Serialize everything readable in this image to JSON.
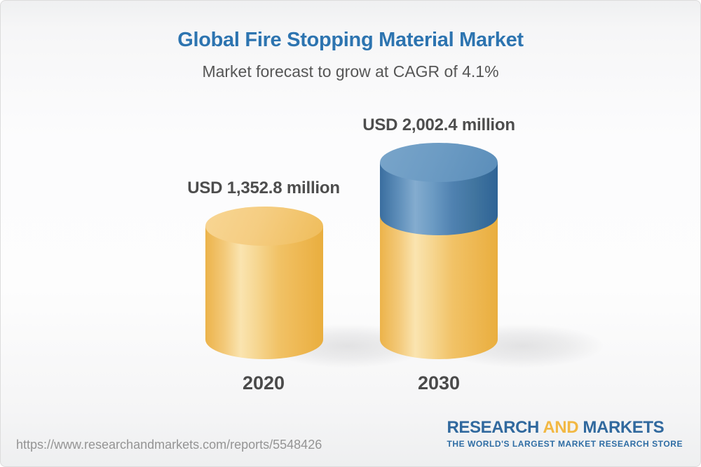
{
  "header": {
    "title": "Global Fire Stopping Material Market",
    "subtitle": "Market forecast to grow at CAGR of 4.1%"
  },
  "chart_data": {
    "type": "bar",
    "subtype": "3d-stacked-cylinder-infographic",
    "title": "Global Fire Stopping Material Market",
    "subtitle": "Market forecast to grow at CAGR of 4.1%",
    "unit": "USD million",
    "cagr_percent": 4.1,
    "categories": [
      "2020",
      "2030"
    ],
    "values": [
      1352.8,
      2002.4
    ],
    "value_labels": [
      "USD 1,352.8 million",
      "USD 2,002.4 million"
    ],
    "series": [
      {
        "name": "2020 base value",
        "values": [
          1352.8,
          1352.8
        ],
        "color": "#f0bd5b"
      },
      {
        "name": "Forecast growth by 2030",
        "values": [
          0,
          649.6
        ],
        "color": "#4a7fae"
      }
    ],
    "legend": "none",
    "grid": false,
    "axes": "none",
    "colors": {
      "bar_yellow": "#f0bd5b",
      "bar_blue": "#4a7fae",
      "title_blue": "#2d74b0",
      "label_gray": "#4d4d4d"
    }
  },
  "footer": {
    "url": "https://www.researchandmarkets.com/reports/5548426",
    "logo": {
      "part1": "RESEARCH",
      "part2": "AND",
      "part3": "MARKETS",
      "tagline": "THE WORLD'S LARGEST MARKET RESEARCH STORE",
      "blue": "#31699e",
      "gold": "#f2b843"
    }
  }
}
